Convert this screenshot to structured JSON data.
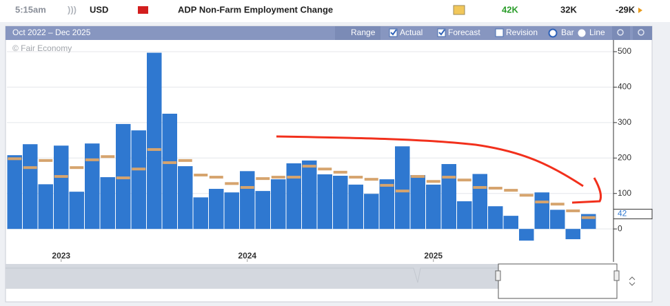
{
  "event_row": {
    "time": "5:15am",
    "currency": "USD",
    "title": "ADP Non-Farm Employment Change",
    "actual": "42K",
    "forecast": "32K",
    "previous": "-29K"
  },
  "toolbar": {
    "range_text": "Oct 2022 – Dec 2025",
    "range_button": "Range",
    "revision": "Revision",
    "bar": "Bar",
    "line": "Line"
  },
  "copyright": "© Fair Economy",
  "chart_data": {
    "type": "bar",
    "categories": [
      null,
      null,
      null,
      "2023",
      null,
      null,
      null,
      null,
      null,
      null,
      null,
      null,
      null,
      null,
      null,
      "2024",
      null,
      null,
      null,
      null,
      null,
      null,
      null,
      null,
      null,
      null,
      null,
      "2025",
      null,
      null,
      null,
      null,
      null,
      null,
      null,
      null,
      null,
      null
    ],
    "series": [
      {
        "name": "Actual",
        "color": "#2f78d0",
        "values": [
          208,
          239,
          126,
          235,
          105,
          241,
          146,
          296,
          278,
          497,
          325,
          177,
          89,
          113,
          103,
          163,
          107,
          140,
          185,
          193,
          154,
          150,
          125,
          99,
          140,
          233,
          152,
          125,
          183,
          78,
          155,
          64,
          37,
          -33,
          103,
          54,
          -29,
          42
        ]
      },
      {
        "name": "Forecast",
        "color": "#d6a46e",
        "values": [
          198,
          173,
          193,
          148,
          173,
          195,
          204,
          144,
          169,
          224,
          187,
          193,
          152,
          146,
          128,
          117,
          142,
          146,
          146,
          177,
          169,
          160,
          146,
          140,
          123,
          107,
          148,
          134,
          146,
          138,
          117,
          115,
          109,
          95,
          76,
          70,
          51,
          32
        ]
      }
    ],
    "ylim": [
      -93,
      533
    ],
    "yticks": [
      0,
      100,
      200,
      300,
      400,
      500
    ],
    "grid": true
  }
}
